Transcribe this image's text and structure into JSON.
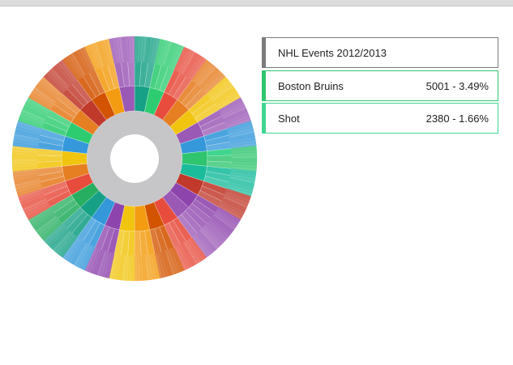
{
  "window": {
    "title": ""
  },
  "breadcrumb": {
    "root": {
      "label": "NHL Events 2012/2013",
      "color": "#7b7b7b"
    },
    "team": {
      "label": "Boston Bruins",
      "value": "5001 - 3.49%",
      "color": "#2fc56f"
    },
    "event": {
      "label": "Shot",
      "value": "2380 - 1.66%",
      "color": "#40d690"
    }
  },
  "chart_data": {
    "type": "sunburst",
    "title": "NHL Events 2012/2013",
    "center_color": "#c6c6c8",
    "palette": [
      "#e74c3c",
      "#f39c12",
      "#f1c40f",
      "#9b59b6",
      "#3498db",
      "#2ecc71",
      "#1abc9c",
      "#e67e22",
      "#d35400",
      "#c0392b",
      "#8e44ad",
      "#27ae60",
      "#16a085",
      "#2980b9"
    ],
    "teams": [
      {
        "name": "",
        "color": "#16a085"
      },
      {
        "name": "",
        "color": "#2ecc71"
      },
      {
        "name": "",
        "color": "#e74c3c"
      },
      {
        "name": "",
        "color": "#e67e22"
      },
      {
        "name": "",
        "color": "#f1c40f"
      },
      {
        "name": "",
        "color": "#9b59b6"
      },
      {
        "name": "",
        "color": "#3498db"
      },
      {
        "name": "Boston Bruins",
        "value": 5001,
        "percent": 3.49,
        "color": "#2fc56f",
        "highlight": true
      },
      {
        "name": "",
        "color": "#1abc9c"
      },
      {
        "name": "",
        "color": "#c0392b"
      },
      {
        "name": "",
        "color": "#8e44ad"
      },
      {
        "name": "",
        "color": "#9b59b6"
      },
      {
        "name": "",
        "color": "#e74c3c"
      },
      {
        "name": "",
        "color": "#d35400"
      },
      {
        "name": "",
        "color": "#f39c12"
      },
      {
        "name": "",
        "color": "#f1c40f"
      },
      {
        "name": "",
        "color": "#8e44ad"
      },
      {
        "name": "",
        "color": "#3498db"
      },
      {
        "name": "",
        "color": "#16a085"
      },
      {
        "name": "",
        "color": "#27ae60"
      },
      {
        "name": "",
        "color": "#e74c3c"
      },
      {
        "name": "",
        "color": "#e67e22"
      },
      {
        "name": "",
        "color": "#f1c40f"
      },
      {
        "name": "",
        "color": "#3498db"
      },
      {
        "name": "",
        "color": "#2ecc71"
      },
      {
        "name": "",
        "color": "#e67e22"
      },
      {
        "name": "",
        "color": "#c0392b"
      },
      {
        "name": "",
        "color": "#d35400"
      },
      {
        "name": "",
        "color": "#f39c12"
      },
      {
        "name": "",
        "color": "#9b59b6"
      }
    ],
    "highlight_event": {
      "name": "Shot",
      "value": 2380,
      "percent": 1.66,
      "color": "#40d690"
    }
  }
}
